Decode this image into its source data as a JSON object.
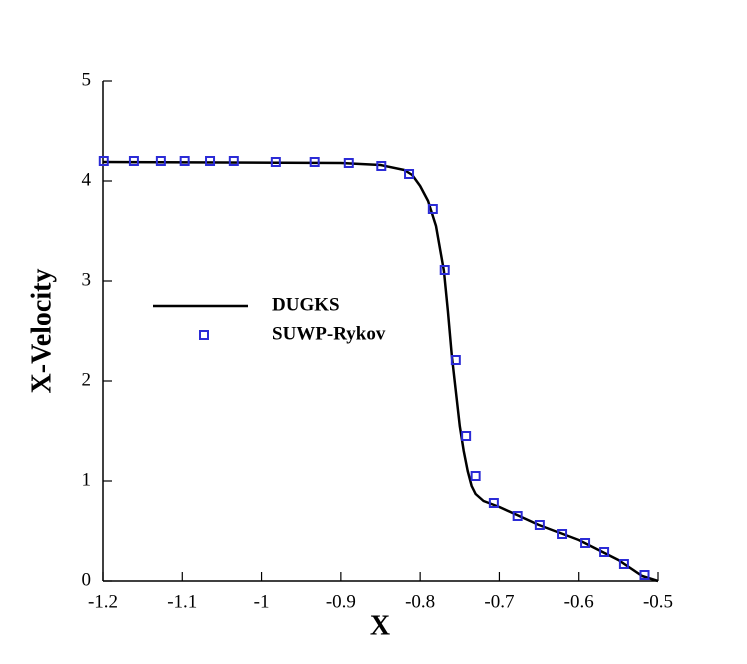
{
  "chart_data": {
    "type": "line",
    "xlabel": "X",
    "ylabel": "X-Velocity",
    "xlim": [
      -1.2,
      -0.5
    ],
    "ylim": [
      0,
      5
    ],
    "xticks": [
      -1.2,
      -1.1,
      -1,
      -0.9,
      -0.8,
      -0.7,
      -0.6,
      -0.5
    ],
    "yticks": [
      0,
      1,
      2,
      3,
      4,
      5
    ],
    "series": [
      {
        "name": "DUGKS",
        "color": "#000000",
        "mode": "line",
        "x": [
          -1.2,
          -0.9,
          -0.85,
          -0.82,
          -0.81,
          -0.8,
          -0.79,
          -0.78,
          -0.77,
          -0.765,
          -0.76,
          -0.755,
          -0.75,
          -0.745,
          -0.74,
          -0.735,
          -0.73,
          -0.72,
          -0.71,
          -0.7,
          -0.65,
          -0.6,
          -0.55,
          -0.52,
          -0.5
        ],
        "values": [
          4.19,
          4.18,
          4.16,
          4.11,
          4.06,
          3.95,
          3.8,
          3.55,
          3.1,
          2.7,
          2.25,
          1.9,
          1.55,
          1.3,
          1.1,
          0.95,
          0.87,
          0.8,
          0.77,
          0.74,
          0.56,
          0.41,
          0.21,
          0.05,
          0.0
        ]
      },
      {
        "name": "SUWP-Rykov",
        "color": "#2b2bd6",
        "mode": "markers",
        "x": [
          -1.199,
          -1.161,
          -1.127,
          -1.097,
          -1.065,
          -1.035,
          -0.982,
          -0.933,
          -0.89,
          -0.849,
          -0.814,
          -0.784,
          -0.769,
          -0.755,
          -0.742,
          -0.73,
          -0.707,
          -0.677,
          -0.649,
          -0.621,
          -0.592,
          -0.568,
          -0.543,
          -0.517
        ],
        "values": [
          4.2,
          4.2,
          4.2,
          4.2,
          4.2,
          4.2,
          4.19,
          4.19,
          4.18,
          4.15,
          4.07,
          3.72,
          3.11,
          2.21,
          1.45,
          1.05,
          0.78,
          0.65,
          0.56,
          0.47,
          0.38,
          0.29,
          0.17,
          0.06
        ]
      }
    ]
  }
}
